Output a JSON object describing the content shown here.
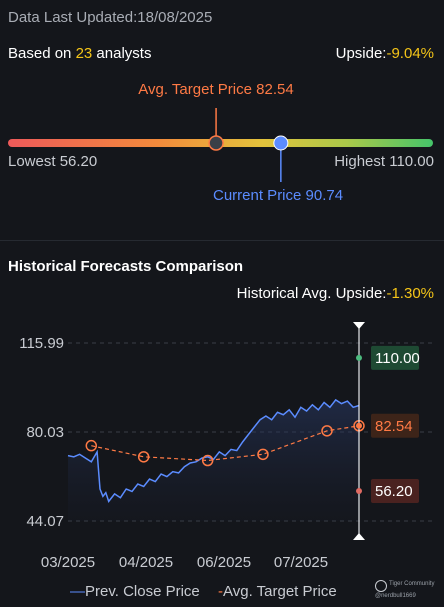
{
  "header": {
    "updated_label": "Data Last Updated:",
    "updated_value": "18/08/2025",
    "basis_prefix": "Based on ",
    "analyst_count": "23",
    "basis_suffix": " analysts",
    "upside_label": "Upside:",
    "upside_value": "-9.04%"
  },
  "range": {
    "avg_target_label": "Avg. Target Price 82.54",
    "lowest_label": "Lowest 56.20",
    "highest_label": "Highest 110.00",
    "current_label": "Current Price 90.74",
    "low": 56.2,
    "high": 110.0,
    "avg_target": 82.54,
    "current": 90.74
  },
  "historical": {
    "title": "Historical Forecasts Comparison",
    "upside_label": "Historical Avg. Upside:",
    "upside_value": "-1.30%"
  },
  "chart_data": {
    "type": "line",
    "ylim": [
      44.07,
      115.99
    ],
    "y_ticks": [
      "115.99",
      "80.03",
      "44.07"
    ],
    "x_ticks": [
      "03/2025",
      "04/2025",
      "06/2025",
      "07/2025"
    ],
    "x_tick_positions": [
      0.03,
      0.23,
      0.48,
      0.7
    ],
    "series": [
      {
        "name": "Prev. Close Price",
        "color": "#5b8cff",
        "x": [
          0.0,
          0.02,
          0.04,
          0.06,
          0.08,
          0.1,
          0.11,
          0.12,
          0.13,
          0.14,
          0.16,
          0.18,
          0.2,
          0.22,
          0.24,
          0.26,
          0.28,
          0.3,
          0.32,
          0.34,
          0.36,
          0.38,
          0.4,
          0.42,
          0.44,
          0.46,
          0.48,
          0.5,
          0.52,
          0.54,
          0.56,
          0.58,
          0.6,
          0.62,
          0.64,
          0.66,
          0.68,
          0.7,
          0.72,
          0.74,
          0.76,
          0.78,
          0.8,
          0.82,
          0.84,
          0.86,
          0.88,
          0.9,
          0.92,
          0.94,
          0.96,
          0.98,
          1.0
        ],
        "values": [
          70.5,
          70.0,
          71.0,
          69.5,
          68.0,
          72.0,
          57.0,
          54.0,
          55.5,
          52.0,
          55.0,
          53.5,
          57.0,
          56.0,
          59.0,
          58.0,
          61.0,
          60.0,
          63.0,
          62.0,
          64.0,
          63.5,
          66.0,
          67.5,
          68.0,
          69.5,
          70.0,
          69.0,
          72.0,
          70.5,
          73.0,
          72.5,
          76.0,
          79.0,
          82.0,
          85.0,
          86.5,
          85.0,
          88.0,
          87.0,
          89.0,
          86.0,
          90.0,
          88.5,
          91.0,
          89.0,
          92.0,
          90.0,
          93.0,
          91.5,
          92.5,
          90.0,
          90.74
        ]
      },
      {
        "name": "Avg. Target Price",
        "color": "#ff7a45",
        "x": [
          0.08,
          0.26,
          0.48,
          0.67,
          0.89,
          1.0
        ],
        "values": [
          74.5,
          70.0,
          68.5,
          71.0,
          80.5,
          82.54
        ]
      }
    ],
    "markers": [
      {
        "label": "110.00",
        "value": 110.0,
        "color": "#4cbb7f",
        "bg": "#1e4a33"
      },
      {
        "label": "82.54",
        "value": 82.54,
        "color": "#ff7a45",
        "bg": "#3d2419"
      },
      {
        "label": "56.20",
        "value": 56.2,
        "color": "#e06b63",
        "bg": "#4a2220"
      }
    ],
    "legend": [
      "Prev. Close Price",
      "Avg. Target Price"
    ]
  }
}
